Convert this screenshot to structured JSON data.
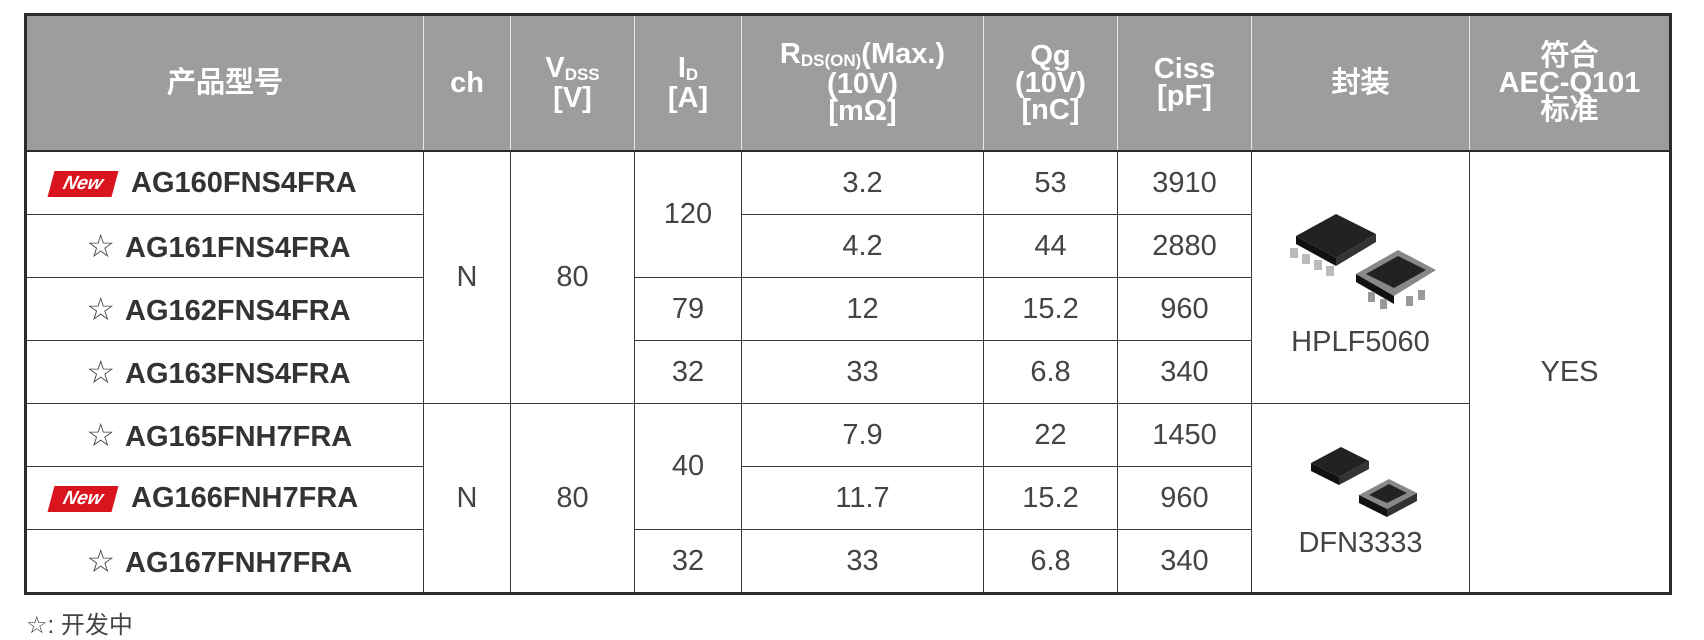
{
  "table": {
    "header": [
      {
        "lines": [
          "产品型号"
        ]
      },
      {
        "lines": [
          "ch"
        ]
      },
      {
        "text": "V",
        "sub": "DSS",
        "lines": [
          "[V]"
        ]
      },
      {
        "text": "I",
        "sub": "D",
        "lines": [
          "[A]"
        ]
      },
      {
        "text": "R",
        "sub": "DS(ON)",
        "suffix": "(Max.)",
        "lines": [
          "(10V)",
          "[mΩ]"
        ]
      },
      {
        "lines": [
          "Qg",
          "(10V)",
          "[nC]"
        ]
      },
      {
        "lines": [
          "Ciss",
          "[pF]"
        ]
      },
      {
        "lines": [
          "封装"
        ]
      },
      {
        "lines": [
          "符合",
          "AEC-Q101",
          "标准"
        ]
      }
    ],
    "rows": [
      {
        "marker": "New",
        "part": "AG160FNS4FRA",
        "ch": "N",
        "vdss": 80,
        "id": 120,
        "rds": 3.2,
        "qg": 53,
        "ciss": 3910,
        "package": "HPLF5060",
        "aec": "YES"
      },
      {
        "marker": "☆",
        "part": "AG161FNS4FRA",
        "rds": 4.2,
        "qg": 44,
        "ciss": 2880
      },
      {
        "marker": "☆",
        "part": "AG162FNS4FRA",
        "id": 79,
        "rds": 12,
        "qg": 15.2,
        "ciss": 960
      },
      {
        "marker": "☆",
        "part": "AG163FNS4FRA",
        "id": 32,
        "rds": 33,
        "qg": 6.8,
        "ciss": 340
      },
      {
        "marker": "☆",
        "part": "AG165FNH7FRA",
        "ch": "N",
        "vdss": 80,
        "id": 40,
        "rds": 7.9,
        "qg": 22,
        "ciss": 1450,
        "package": "DFN3333"
      },
      {
        "marker": "New",
        "part": "AG166FNH7FRA",
        "rds": 11.7,
        "qg": 15.2,
        "ciss": 960
      },
      {
        "marker": "☆",
        "part": "AG167FNH7FRA",
        "id": 32,
        "rds": 33,
        "qg": 6.8,
        "ciss": 340
      }
    ],
    "footnote": "☆: 开发中"
  }
}
